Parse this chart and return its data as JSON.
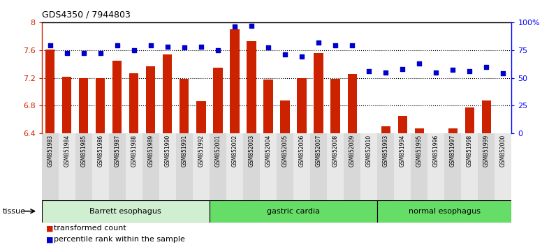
{
  "title": "GDS4350 / 7944803",
  "samples": [
    "GSM851983",
    "GSM851984",
    "GSM851985",
    "GSM851986",
    "GSM851987",
    "GSM851988",
    "GSM851989",
    "GSM851990",
    "GSM851991",
    "GSM851992",
    "GSM852001",
    "GSM852002",
    "GSM852003",
    "GSM852004",
    "GSM852005",
    "GSM852006",
    "GSM852007",
    "GSM852008",
    "GSM852009",
    "GSM852010",
    "GSM851993",
    "GSM851994",
    "GSM851995",
    "GSM851996",
    "GSM851997",
    "GSM851998",
    "GSM851999",
    "GSM852000"
  ],
  "bar_values": [
    7.61,
    7.22,
    7.2,
    7.2,
    7.45,
    7.27,
    7.37,
    7.54,
    7.19,
    6.86,
    7.35,
    7.9,
    7.73,
    7.17,
    6.87,
    7.2,
    7.56,
    7.19,
    7.26,
    6.4,
    6.5,
    6.65,
    6.47,
    6.4,
    6.47,
    6.77,
    6.87,
    6.4
  ],
  "dot_values_pct": [
    79,
    72,
    72,
    72,
    79,
    75,
    79,
    78,
    77,
    78,
    75,
    96,
    97,
    77,
    71,
    69,
    82,
    79,
    79,
    56,
    55,
    58,
    63,
    55,
    57,
    56,
    60,
    54
  ],
  "bar_color": "#cc2200",
  "dot_color": "#0000cc",
  "ylim_left": [
    6.4,
    8.0
  ],
  "ylim_right": [
    0,
    100
  ],
  "yticks_left": [
    6.4,
    6.8,
    7.2,
    7.6,
    8.0
  ],
  "ytick_labels_left": [
    "6.4",
    "6.8",
    "7.2",
    "7.6",
    "8"
  ],
  "yticks_right": [
    0,
    25,
    50,
    75,
    100
  ],
  "ytick_labels_right": [
    "0",
    "25",
    "50",
    "75",
    "100%"
  ],
  "hgrid_values": [
    6.8,
    7.2,
    7.6
  ],
  "groups": [
    {
      "label": "Barrett esophagus",
      "start": 0,
      "end": 10,
      "color": "#d0eed0"
    },
    {
      "label": "gastric cardia",
      "start": 10,
      "end": 20,
      "color": "#66dd66"
    },
    {
      "label": "normal esophagus",
      "start": 20,
      "end": 28,
      "color": "#66dd66"
    }
  ],
  "legend": [
    {
      "label": "transformed count",
      "color": "#cc2200"
    },
    {
      "label": "percentile rank within the sample",
      "color": "#0000cc"
    }
  ],
  "tissue_label": "tissue",
  "bar_width": 0.55,
  "col_colors": [
    "#d8d8d8",
    "#e8e8e8"
  ]
}
